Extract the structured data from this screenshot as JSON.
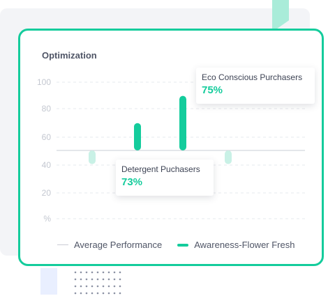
{
  "chart_data": {
    "type": "bar",
    "title": "Optimization",
    "y_ticks": [
      "100",
      "80",
      "60",
      "40",
      "20",
      "%"
    ],
    "ylim": [
      0,
      100
    ],
    "average_performance": 50,
    "series": [
      {
        "name": "Awareness-Flower Fresh",
        "color": "#14cc9c",
        "bars": [
          {
            "low": 40,
            "high": 50,
            "highlight": false
          },
          {
            "low": 50,
            "high": 70,
            "highlight": true
          },
          {
            "low": 50,
            "high": 90,
            "highlight": true
          },
          {
            "low": 40,
            "high": 50,
            "highlight": false
          }
        ]
      }
    ],
    "legend": [
      "Average Performance",
      "Awareness-Flower Fresh"
    ],
    "legend_position": "bottom",
    "grid": true,
    "annotations": [
      {
        "label": "Eco Conscious Purchasers",
        "value": "75%"
      },
      {
        "label": "Detergent Puchasers",
        "value": "73%"
      }
    ]
  },
  "colors": {
    "accent": "#14cc9c",
    "accent_light": "#c9f1e6",
    "text": "#4f5566",
    "grid": "#e6e8ec"
  }
}
